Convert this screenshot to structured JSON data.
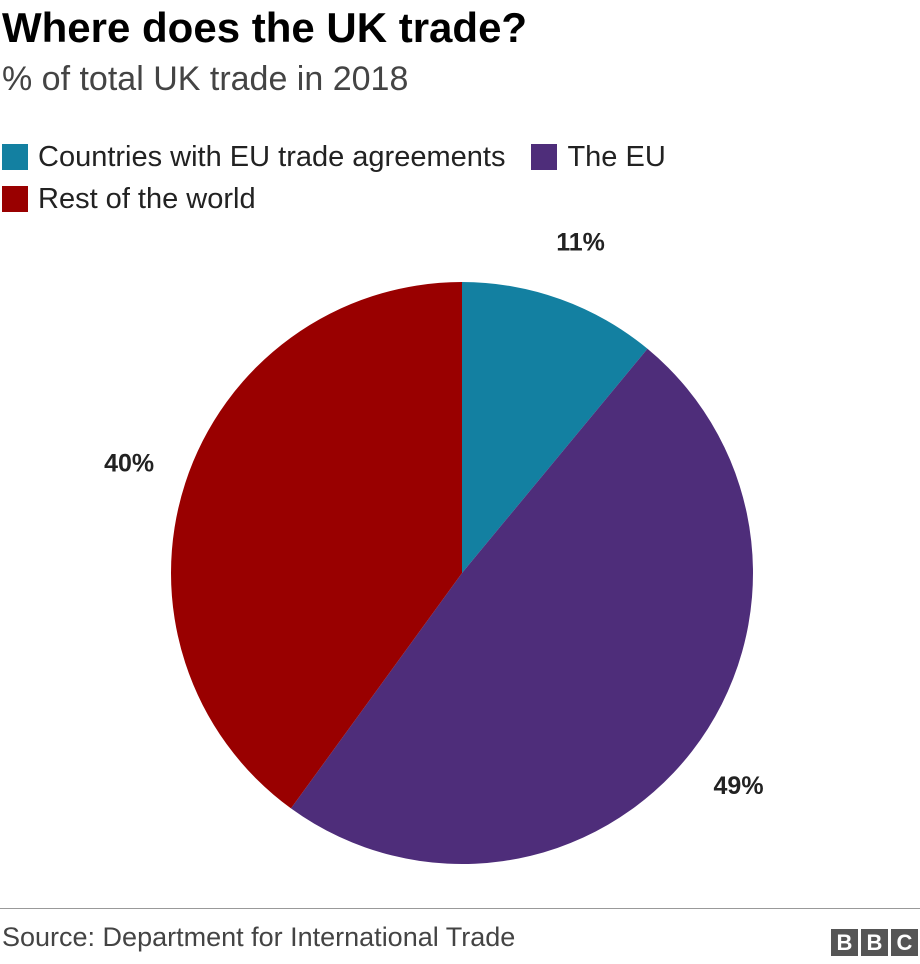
{
  "title": "Where does the UK trade?",
  "subtitle": "% of total UK trade in 2018",
  "source": "Source: Department for International Trade",
  "logo": {
    "letters": [
      "B",
      "B",
      "C"
    ]
  },
  "chart_data": {
    "type": "pie",
    "title": "Where does the UK trade?",
    "subtitle": "% of total UK trade in 2018",
    "legend_placement": "top-left",
    "slices": [
      {
        "name": "Countries with EU trade agreements",
        "value": 11,
        "label": "11%",
        "color": "#1380a1"
      },
      {
        "name": "The EU",
        "value": 49,
        "label": "49%",
        "color": "#4e2d7a"
      },
      {
        "name": "Rest of the world",
        "value": 40,
        "label": "40%",
        "color": "#990000"
      }
    ]
  }
}
